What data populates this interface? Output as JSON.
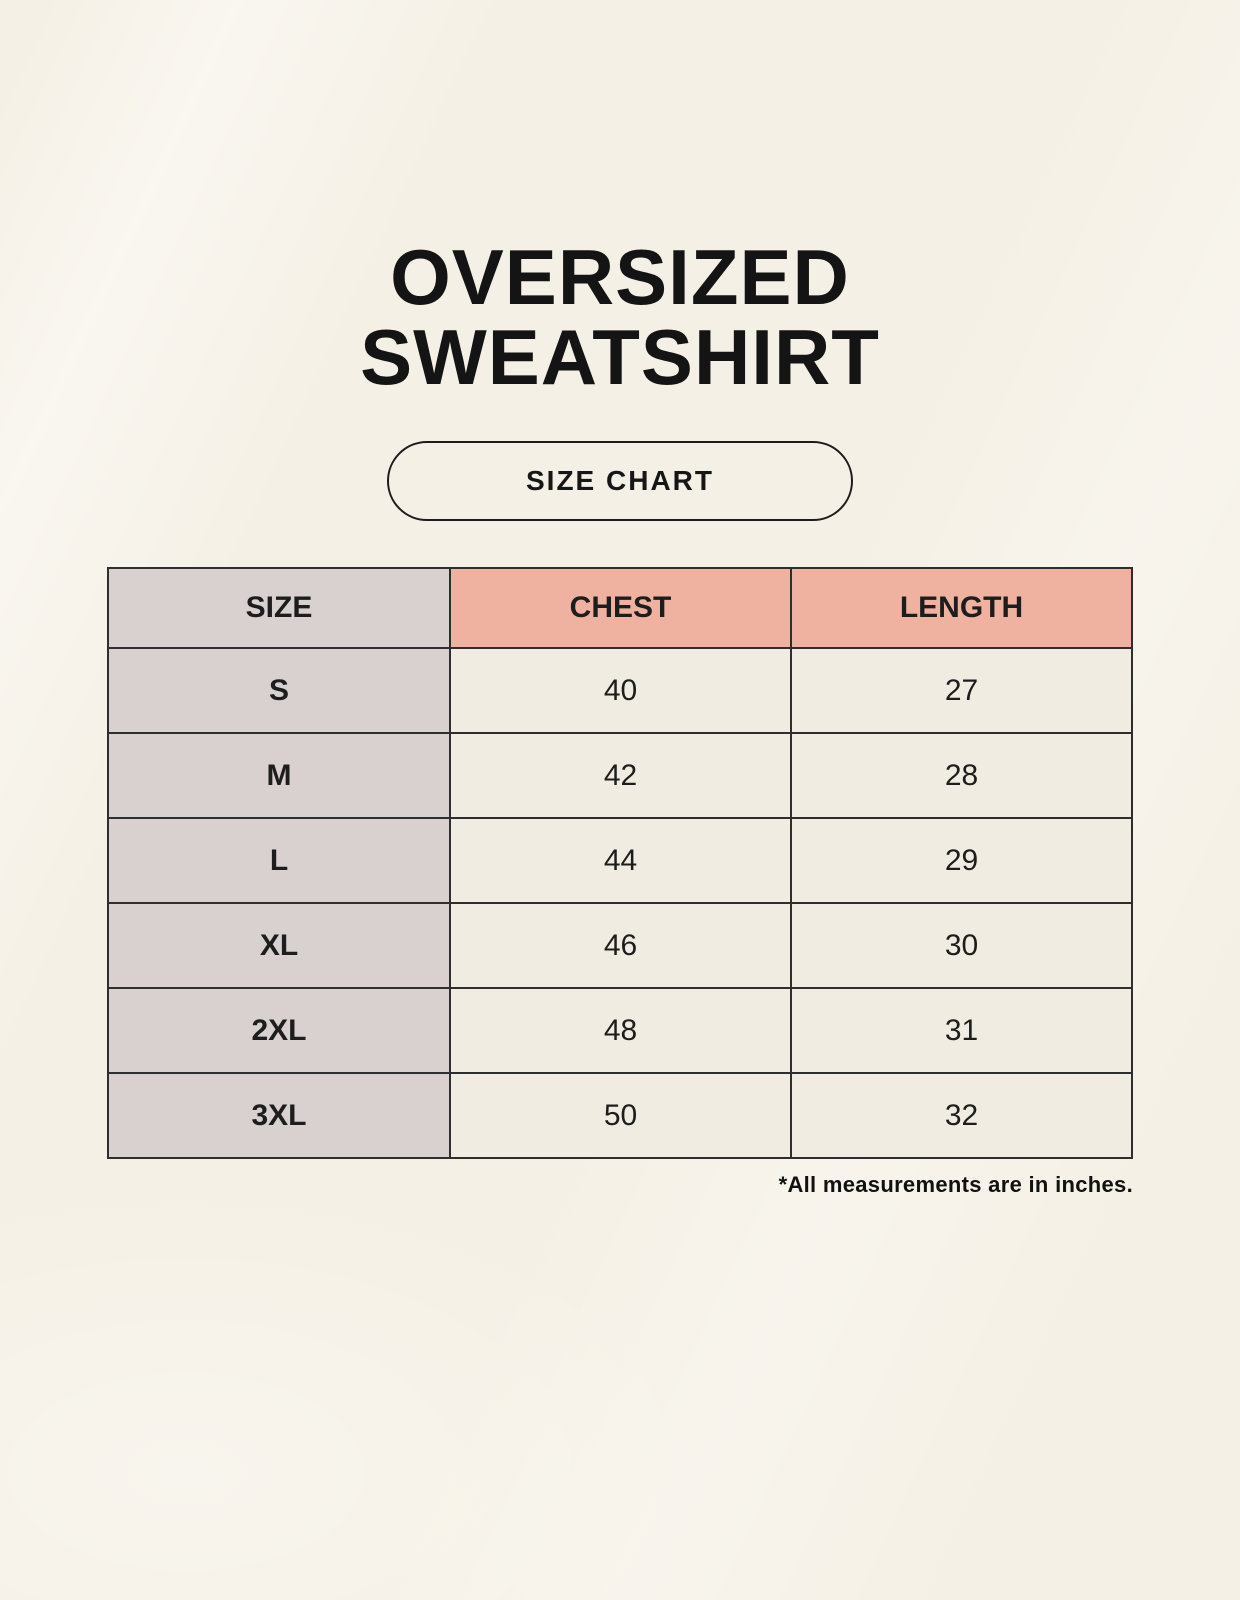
{
  "title": {
    "line1": "OVERSIZED",
    "line2": "SWEATSHIRT"
  },
  "badge": {
    "label": "SIZE CHART"
  },
  "table": {
    "headers": [
      "SIZE",
      "CHEST",
      "LENGTH"
    ],
    "rows": [
      {
        "size": "S",
        "chest": "40",
        "length": "27"
      },
      {
        "size": "M",
        "chest": "42",
        "length": "28"
      },
      {
        "size": "L",
        "chest": "44",
        "length": "29"
      },
      {
        "size": "XL",
        "chest": "46",
        "length": "30"
      },
      {
        "size": "2XL",
        "chest": "48",
        "length": "31"
      },
      {
        "size": "3XL",
        "chest": "50",
        "length": "32"
      }
    ]
  },
  "footnote": "*All measurements are in inches.",
  "colors": {
    "background": "#F5F0E5",
    "size_column_bg": "#D8D1D0",
    "accent_header_bg": "#F0B2A0",
    "cell_bg": "#F1ECE1",
    "border": "#2E2E2E",
    "text": "#161616"
  }
}
